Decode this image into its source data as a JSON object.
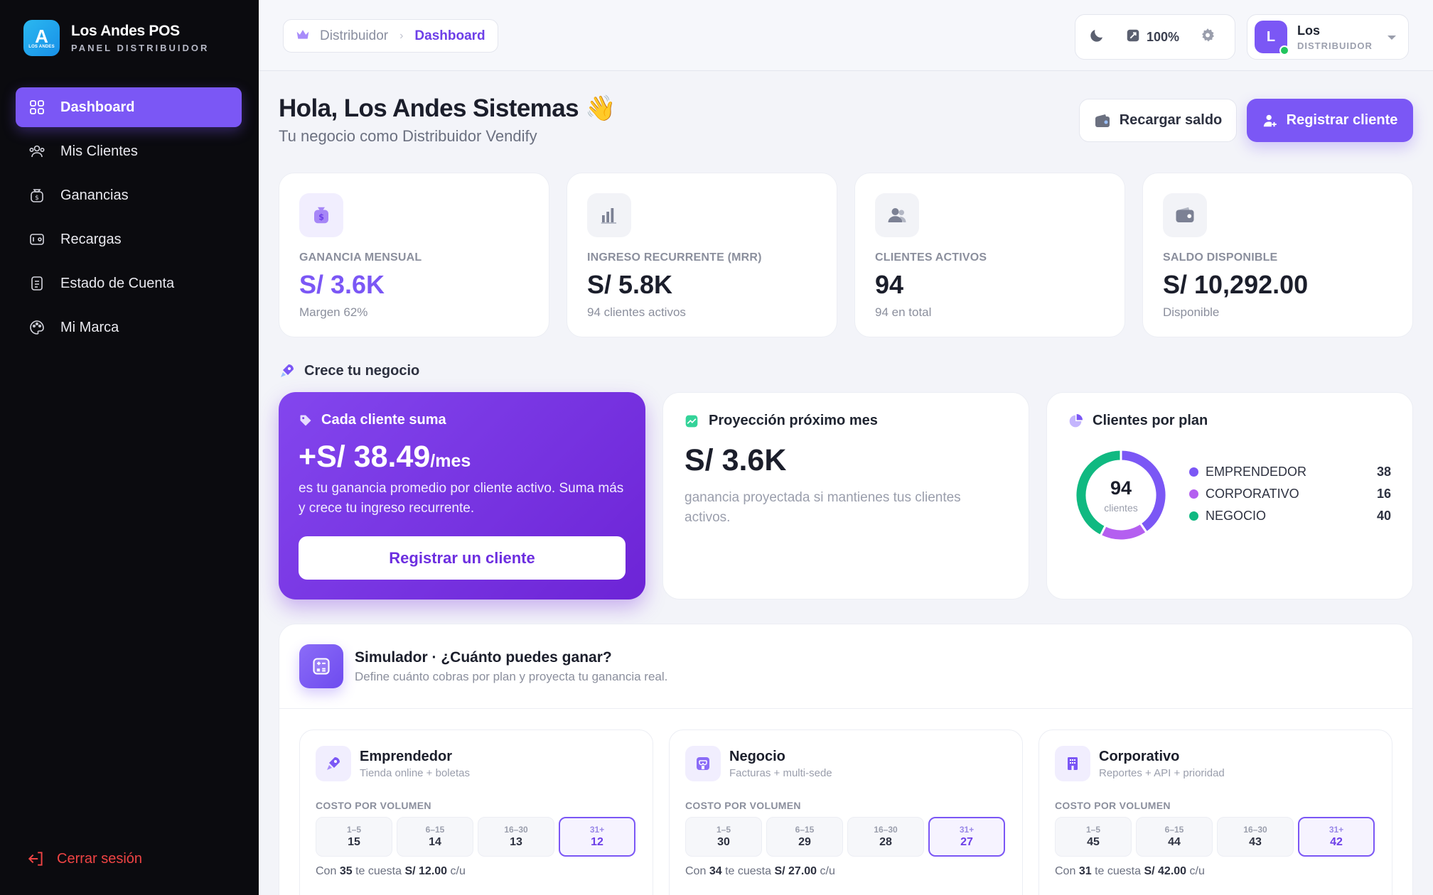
{
  "brand": {
    "logo_letter": "A",
    "logo_small": "LOS ANDES",
    "title": "Los Andes POS",
    "subtitle": "PANEL DISTRIBUIDOR"
  },
  "nav": [
    {
      "label": "Dashboard",
      "icon": "grid-icon",
      "active": true
    },
    {
      "label": "Mis Clientes",
      "icon": "users-icon"
    },
    {
      "label": "Ganancias",
      "icon": "money-bag-icon"
    },
    {
      "label": "Recargas",
      "icon": "wallet-card-icon"
    },
    {
      "label": "Estado de Cuenta",
      "icon": "document-icon"
    },
    {
      "label": "Mi Marca",
      "icon": "palette-icon"
    }
  ],
  "logout_label": "Cerrar sesión",
  "breadcrumb": {
    "parent": "Distribuidor",
    "current": "Dashboard"
  },
  "toolbar": {
    "zoom": "100%"
  },
  "user": {
    "initial": "L",
    "name": "Los",
    "role": "DISTRIBUIDOR"
  },
  "greeting": {
    "title": "Hola, Los Andes Sistemas 👋",
    "subtitle": "Tu negocio como Distribuidor Vendify"
  },
  "actions": {
    "recharge": "Recargar saldo",
    "register": "Registrar cliente"
  },
  "stats": [
    {
      "label": "GANANCIA MENSUAL",
      "value": "S/ 3.6K",
      "sub": "Margen 62%",
      "icon": "money-bag-icon"
    },
    {
      "label": "INGRESO RECURRENTE (MRR)",
      "value": "S/ 5.8K",
      "sub": "94 clientes activos",
      "icon": "bar-chart-icon"
    },
    {
      "label": "CLIENTES ACTIVOS",
      "value": "94",
      "sub": "94 en total",
      "icon": "users-icon"
    },
    {
      "label": "SALDO DISPONIBLE",
      "value": "S/ 10,292.00",
      "sub": "Disponible",
      "icon": "wallet-icon"
    }
  ],
  "grow": {
    "section_title": "Crece tu negocio",
    "promo": {
      "title": "Cada cliente suma",
      "value": "+S/ 38.49",
      "unit": "/mes",
      "desc": "es tu ganancia promedio por cliente activo. Suma más y crece tu ingreso recurrente.",
      "button": "Registrar un cliente"
    },
    "projection": {
      "title": "Proyección próximo mes",
      "value": "S/ 3.6K",
      "desc": "ganancia proyectada si mantienes tus clientes activos."
    },
    "plans": {
      "title": "Clientes por plan",
      "total": "94",
      "total_label": "clientes",
      "items": [
        {
          "name": "EMPRENDEDOR",
          "value": 38,
          "color": "#7b57f5"
        },
        {
          "name": "CORPORATIVO",
          "value": 16,
          "color": "#b45ff0"
        },
        {
          "name": "NEGOCIO",
          "value": 40,
          "color": "#10b981"
        }
      ]
    }
  },
  "simulator": {
    "title": "Simulador · ¿Cuánto puedes ganar?",
    "subtitle": "Define cuánto cobras por plan y proyecta tu ganancia real.",
    "volume_label": "COSTO POR VOLUMEN",
    "plans": [
      {
        "name": "Emprendedor",
        "desc": "Tienda online + boletas",
        "icon": "rocket-icon",
        "tiers": [
          {
            "range": "1–5",
            "price": "15"
          },
          {
            "range": "6–15",
            "price": "14"
          },
          {
            "range": "16–30",
            "price": "13"
          },
          {
            "range": "31+",
            "price": "12"
          }
        ],
        "foot_pre": "Con",
        "foot_count": "35",
        "foot_mid": "te cuesta",
        "foot_price": "S/ 12.00",
        "foot_post": "c/u"
      },
      {
        "name": "Negocio",
        "desc": "Facturas + multi-sede",
        "icon": "store-icon",
        "tiers": [
          {
            "range": "1–5",
            "price": "30"
          },
          {
            "range": "6–15",
            "price": "29"
          },
          {
            "range": "16–30",
            "price": "28"
          },
          {
            "range": "31+",
            "price": "27"
          }
        ],
        "foot_pre": "Con",
        "foot_count": "34",
        "foot_mid": "te cuesta",
        "foot_price": "S/ 27.00",
        "foot_post": "c/u"
      },
      {
        "name": "Corporativo",
        "desc": "Reportes + API + prioridad",
        "icon": "building-icon",
        "tiers": [
          {
            "range": "1–5",
            "price": "45"
          },
          {
            "range": "6–15",
            "price": "44"
          },
          {
            "range": "16–30",
            "price": "43"
          },
          {
            "range": "31+",
            "price": "42"
          }
        ],
        "foot_pre": "Con",
        "foot_count": "31",
        "foot_mid": "te cuesta",
        "foot_price": "S/ 42.00",
        "foot_post": "c/u"
      }
    ]
  }
}
